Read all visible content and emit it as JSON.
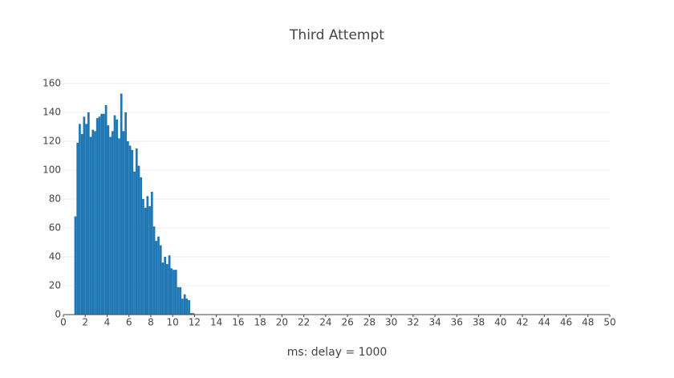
{
  "chart_data": {
    "type": "histogram",
    "title": "Third Attempt",
    "x_label": "ms: delay = 1000",
    "bins": [
      1,
      1.2,
      1.4,
      1.6,
      1.8,
      2,
      2.2,
      2.4,
      2.6,
      2.8,
      3,
      3.2,
      3.4,
      3.6,
      3.8,
      4,
      4.2,
      4.4,
      4.6,
      4.8,
      5,
      5.2,
      5.4,
      5.6,
      5.8,
      6,
      6.2,
      6.4,
      6.6,
      6.8,
      7,
      7.2,
      7.4,
      7.6,
      7.8,
      8,
      8.2,
      8.4,
      8.6,
      8.8,
      9,
      9.2,
      9.4,
      9.6,
      9.8,
      10,
      10.2,
      10.4,
      10.6,
      10.8,
      11,
      11.2,
      11.4,
      11.6,
      11.8,
      12
    ],
    "values": [
      68,
      119,
      132,
      125,
      137,
      132,
      140,
      123,
      128,
      127,
      136,
      137,
      139,
      139,
      145,
      131,
      123,
      127,
      138,
      135,
      122,
      153,
      127,
      140,
      120,
      117,
      114,
      99,
      115,
      103,
      95,
      80,
      74,
      82,
      75,
      85,
      61,
      51,
      54,
      48,
      36,
      40,
      35,
      41,
      32,
      31,
      31,
      19,
      19,
      11,
      14,
      11,
      10,
      1,
      1
    ],
    "color": "#1f77b4",
    "xlim": [
      0,
      50
    ],
    "xticks": [
      0,
      2,
      4,
      6,
      8,
      10,
      12,
      14,
      16,
      18,
      20,
      22,
      24,
      26,
      28,
      30,
      32,
      34,
      36,
      38,
      40,
      42,
      44,
      46,
      48,
      50
    ],
    "ylim": [
      0,
      160
    ],
    "yticks": [
      0,
      20,
      40,
      60,
      80,
      100,
      120,
      140,
      160
    ],
    "grid": true
  }
}
